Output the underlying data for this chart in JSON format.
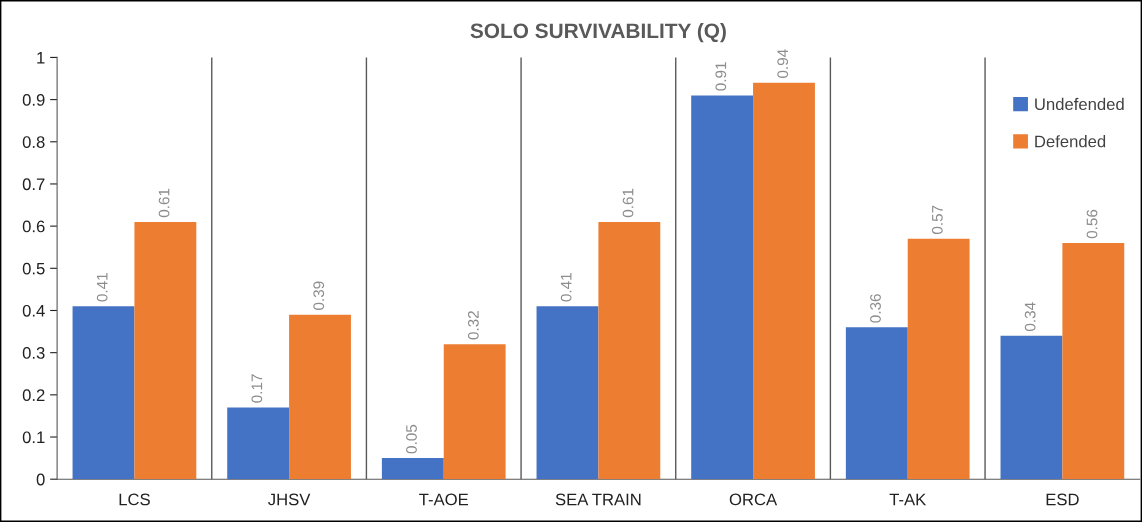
{
  "chart_data": {
    "type": "bar",
    "title": "SOLO SURVIVABILITY (Q)",
    "categories": [
      "LCS",
      "JHSV",
      "T-AOE",
      "SEA TRAIN",
      "ORCA",
      "T-AK",
      "ESD"
    ],
    "series": [
      {
        "name": "Undefended",
        "color": "#4472c4",
        "values": [
          0.41,
          0.17,
          0.05,
          0.41,
          0.91,
          0.36,
          0.34
        ]
      },
      {
        "name": "Defended",
        "color": "#ed7d31",
        "values": [
          0.61,
          0.39,
          0.32,
          0.61,
          0.94,
          0.57,
          0.56
        ]
      }
    ],
    "ylim": [
      0,
      1
    ],
    "yticks": [
      0,
      0.1,
      0.2,
      0.3,
      0.4,
      0.5,
      0.6,
      0.7,
      0.8,
      0.9,
      1
    ],
    "grid": "x",
    "legend": "top right",
    "data_labels": true
  }
}
